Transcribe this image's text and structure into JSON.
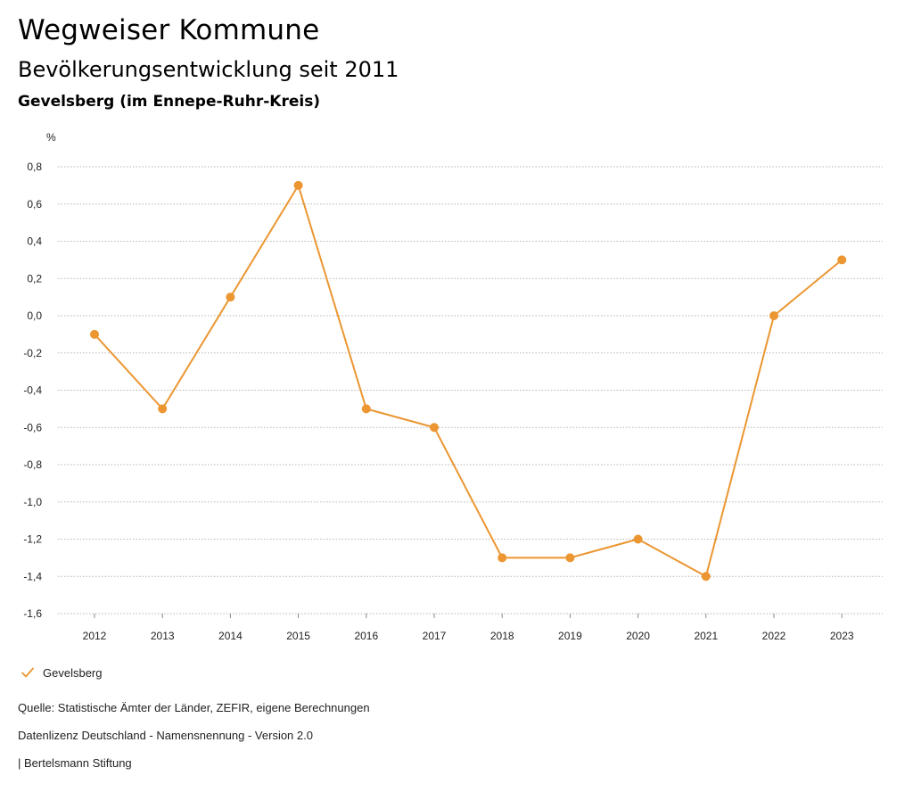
{
  "header": {
    "title": "Wegweiser Kommune",
    "subtitle": "Bevölkerungsentwicklung seit 2011",
    "place": "Gevelsberg (im Ennepe-Ruhr-Kreis)"
  },
  "chart_data": {
    "type": "line",
    "title": "Bevölkerungsentwicklung seit 2011",
    "ylabel": "%",
    "xlabel": "",
    "categories": [
      "2012",
      "2013",
      "2014",
      "2015",
      "2016",
      "2017",
      "2018",
      "2019",
      "2020",
      "2021",
      "2022",
      "2023"
    ],
    "series": [
      {
        "name": "Gevelsberg",
        "color": "#EB9631",
        "values": [
          -0.1,
          -0.5,
          0.1,
          0.7,
          -0.5,
          -0.6,
          -1.3,
          -1.3,
          -1.2,
          -1.4,
          0.0,
          0.3
        ]
      }
    ],
    "ylim": [
      -1.6,
      0.8
    ],
    "yticks": [
      0.8,
      0.6,
      0.4,
      0.2,
      0.0,
      -0.2,
      -0.4,
      -0.6,
      -0.8,
      -1.0,
      -1.2,
      -1.4,
      -1.6
    ],
    "ytick_labels": [
      "0,8",
      "0,6",
      "0,4",
      "0,2",
      "0,0",
      "-0,2",
      "-0,4",
      "-0,6",
      "-0,8",
      "-1,0",
      "-1,2",
      "-1,4",
      "-1,6"
    ],
    "grid": true,
    "legend": "bottom-left"
  },
  "legend": {
    "label": "Gevelsberg",
    "icon": "check-icon"
  },
  "footer": {
    "source": "Quelle: Statistische Ämter der Länder, ZEFIR, eigene Berechnungen",
    "license": "Datenlizenz Deutschland - Namensnennung - Version 2.0",
    "publisher": "| Bertelsmann Stiftung"
  }
}
